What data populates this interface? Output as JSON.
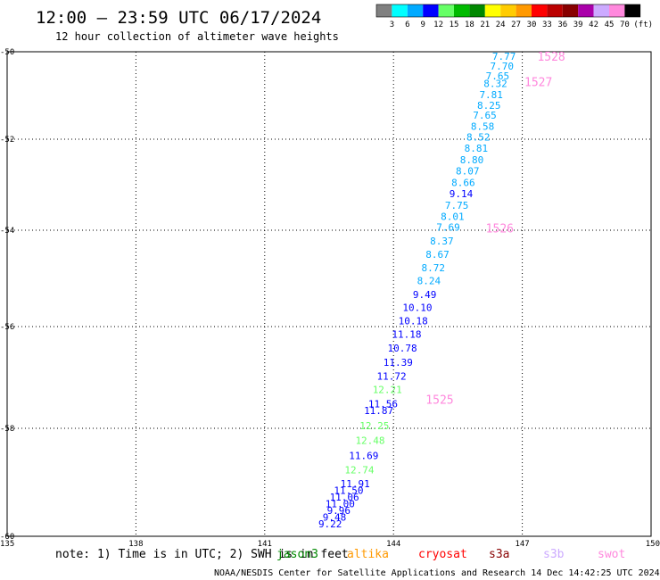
{
  "header": {
    "title": "12:00 — 23:59 UTC 06/17/2024",
    "subtitle": "12 hour collection of altimeter wave heights"
  },
  "colorbar": {
    "unit": "(ft)",
    "colors": [
      "#808080",
      "#00ffff",
      "#00aaff",
      "#0000ff",
      "#66ff66",
      "#00bb00",
      "#008800",
      "#ffff00",
      "#ffcc00",
      "#ff9900",
      "#ff0000",
      "#bb0000",
      "#880000",
      "#aa00aa",
      "#ccaaff",
      "#ff88dd",
      "#000000"
    ],
    "labels": [
      "3",
      "6",
      "9",
      "12",
      "15",
      "18",
      "21",
      "24",
      "27",
      "30",
      "33",
      "36",
      "39",
      "42",
      "45",
      "70"
    ]
  },
  "chart_data": {
    "type": "scatter",
    "title": "12:00 — 23:59 UTC 06/17/2024",
    "subtitle": "12 hour collection of altimeter wave heights",
    "xlim": [
      135,
      150
    ],
    "ylim": [
      -60,
      -50
    ],
    "x_ticks": [
      "135",
      "138",
      "141",
      "144",
      "147",
      "150"
    ],
    "y_ticks": [
      "-50",
      "-52",
      "-54",
      "-56",
      "-58",
      "-60"
    ],
    "grid": true,
    "points": [
      {
        "lon": 146.85,
        "lat": -50.1,
        "text": "7.77",
        "color": "#00aaff"
      },
      {
        "lon": 146.8,
        "lat": -50.33,
        "text": "7.70",
        "color": "#00aaff"
      },
      {
        "lon": 146.7,
        "lat": -50.55,
        "text": "7.65",
        "color": "#00aaff"
      },
      {
        "lon": 146.65,
        "lat": -50.72,
        "text": "8.32",
        "color": "#00aaff"
      },
      {
        "lon": 146.55,
        "lat": -50.98,
        "text": "7.81",
        "color": "#00aaff"
      },
      {
        "lon": 146.5,
        "lat": -51.22,
        "text": "8.25",
        "color": "#00aaff"
      },
      {
        "lon": 146.4,
        "lat": -51.45,
        "text": "7.65",
        "color": "#00aaff"
      },
      {
        "lon": 146.35,
        "lat": -51.7,
        "text": "8.58",
        "color": "#00aaff"
      },
      {
        "lon": 146.25,
        "lat": -51.95,
        "text": "8.52",
        "color": "#00aaff"
      },
      {
        "lon": 146.2,
        "lat": -52.2,
        "text": "8.81",
        "color": "#00aaff"
      },
      {
        "lon": 146.1,
        "lat": -52.45,
        "text": "8.80",
        "color": "#00aaff"
      },
      {
        "lon": 146.0,
        "lat": -52.7,
        "text": "8.07",
        "color": "#00aaff"
      },
      {
        "lon": 145.9,
        "lat": -52.95,
        "text": "8.66",
        "color": "#00aaff"
      },
      {
        "lon": 145.85,
        "lat": -53.2,
        "text": "9.14",
        "color": "#0000ff"
      },
      {
        "lon": 145.75,
        "lat": -53.45,
        "text": "7.75",
        "color": "#00aaff"
      },
      {
        "lon": 145.65,
        "lat": -53.7,
        "text": "8.01",
        "color": "#00aaff"
      },
      {
        "lon": 145.55,
        "lat": -53.93,
        "text": "7.69",
        "color": "#00aaff"
      },
      {
        "lon": 145.4,
        "lat": -54.22,
        "text": "8.37",
        "color": "#00aaff"
      },
      {
        "lon": 145.3,
        "lat": -54.5,
        "text": "8.67",
        "color": "#00aaff"
      },
      {
        "lon": 145.2,
        "lat": -54.78,
        "text": "8.72",
        "color": "#00aaff"
      },
      {
        "lon": 145.1,
        "lat": -55.05,
        "text": "8.24",
        "color": "#00aaff"
      },
      {
        "lon": 145.0,
        "lat": -55.33,
        "text": "9.49",
        "color": "#0000ff"
      },
      {
        "lon": 144.9,
        "lat": -55.6,
        "text": "10.10",
        "color": "#0000ff"
      },
      {
        "lon": 144.8,
        "lat": -55.88,
        "text": "10.18",
        "color": "#0000ff"
      },
      {
        "lon": 144.65,
        "lat": -56.15,
        "text": "11.18",
        "color": "#0000ff"
      },
      {
        "lon": 144.55,
        "lat": -56.42,
        "text": "10.78",
        "color": "#0000ff"
      },
      {
        "lon": 144.45,
        "lat": -56.7,
        "text": "11.39",
        "color": "#0000ff"
      },
      {
        "lon": 144.3,
        "lat": -56.97,
        "text": "11.72",
        "color": "#0000ff"
      },
      {
        "lon": 144.2,
        "lat": -57.24,
        "text": "12.21",
        "color": "#66ff66"
      },
      {
        "lon": 144.1,
        "lat": -57.52,
        "text": "11.56",
        "color": "#0000ff"
      },
      {
        "lon": 144.0,
        "lat": -57.65,
        "text": "11.87",
        "color": "#0000ff"
      },
      {
        "lon": 143.9,
        "lat": -57.95,
        "text": "12.25",
        "color": "#66ff66"
      },
      {
        "lon": 143.8,
        "lat": -58.22,
        "text": "12.48",
        "color": "#66ff66"
      },
      {
        "lon": 143.65,
        "lat": -58.5,
        "text": "11.69",
        "color": "#0000ff"
      },
      {
        "lon": 143.55,
        "lat": -58.77,
        "text": "12.74",
        "color": "#66ff66"
      },
      {
        "lon": 143.45,
        "lat": -59.05,
        "text": "11.91",
        "color": "#0000ff"
      },
      {
        "lon": 143.3,
        "lat": -59.32,
        "text": "11.50",
        "color": "#0000ff"
      },
      {
        "lon": 143.2,
        "lat": -59.6,
        "text": "11.06",
        "color": "#0000ff"
      },
      {
        "lon": 143.1,
        "lat": -59.87,
        "text": "11.00",
        "color": "#0000ff"
      },
      {
        "lon": 143.0,
        "lat": -60.14,
        "text": "9.96",
        "color": "#0000ff"
      },
      {
        "lon": 142.9,
        "lat": -60.42,
        "text": "9.48",
        "color": "#0000ff"
      },
      {
        "lon": 142.8,
        "lat": -60.69,
        "text": "9.22",
        "color": "#0000ff"
      }
    ],
    "pass_labels": [
      {
        "lon": 147.35,
        "lat": -50.12,
        "text": "1528"
      },
      {
        "lon": 147.05,
        "lat": -50.7,
        "text": "1527"
      },
      {
        "lon": 146.15,
        "lat": -53.97,
        "text": "1526"
      },
      {
        "lon": 144.75,
        "lat": -57.45,
        "text": "1525"
      }
    ]
  },
  "footer": {
    "note": "note: 1) Time is in UTC; 2) SWH is in feet",
    "satellites": [
      {
        "name": "jason3",
        "color": "#008800"
      },
      {
        "name": "altika",
        "color": "#ff9900"
      },
      {
        "name": "cryosat",
        "color": "#ff0000"
      },
      {
        "name": "s3a",
        "color": "#880000"
      },
      {
        "name": "s3b",
        "color": "#ccaaff"
      },
      {
        "name": "swot",
        "color": "#ff88dd"
      }
    ],
    "credit": "NOAA/NESDIS Center for Satellite Applications and Research   14 Dec 14:42:25 UTC 2024"
  }
}
